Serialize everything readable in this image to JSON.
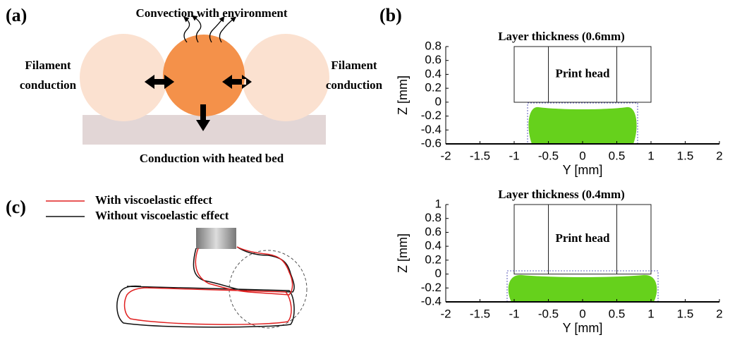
{
  "panel_a": {
    "label": "(a)",
    "title": "Convection with environment",
    "left_label": [
      "Filament",
      "conduction"
    ],
    "right_label": [
      "Filament",
      "conduction"
    ],
    "bottom_label": "Conduction with heated bed"
  },
  "panel_b": {
    "label": "(b)",
    "plots": [
      {
        "title": "Layer thickness (0.6mm)",
        "annotation": "Print head",
        "xlabel": "Y [mm]",
        "ylabel": "Z [mm]",
        "xlim": [
          -2,
          2
        ],
        "ylim": [
          -0.6,
          0.8
        ],
        "xticks": [
          -2,
          -1.5,
          -1,
          -0.5,
          0,
          0.5,
          1,
          1.5,
          2
        ],
        "yticks": [
          -0.6,
          -0.4,
          -0.2,
          0,
          0.2,
          0.4,
          0.6,
          0.8
        ]
      },
      {
        "title": "Layer thickness (0.4mm)",
        "annotation": "Print head",
        "xlabel": "Y [mm]",
        "ylabel": "Z [mm]",
        "xlim": [
          -2,
          2
        ],
        "ylim": [
          -0.4,
          1
        ],
        "xticks": [
          -2,
          -1.5,
          -1,
          -0.5,
          0,
          0.5,
          1,
          1.5,
          2
        ],
        "yticks": [
          -0.4,
          -0.2,
          0,
          0.2,
          0.4,
          0.6,
          0.8,
          1
        ]
      }
    ]
  },
  "panel_c": {
    "label": "(c)",
    "legend": [
      "With viscoelastic effect",
      "Without viscoelastic effect"
    ]
  }
}
